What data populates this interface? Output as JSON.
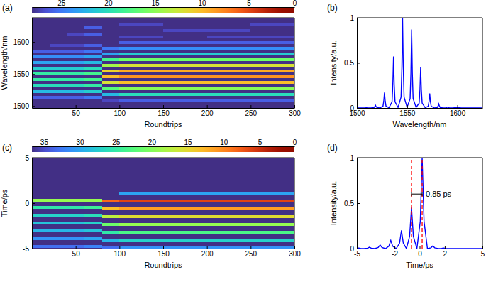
{
  "chart_data": [
    {
      "type": "heatmap",
      "title": "(a)",
      "x_label": "Roundtrips",
      "y_label": "Wavelength/nm",
      "xlim": [
        0,
        300
      ],
      "xticks": [
        50,
        100,
        150,
        200,
        250,
        300
      ],
      "ylim": [
        1497,
        1638
      ],
      "yticks": [
        1500,
        1550,
        1600
      ],
      "x_edges": [
        0,
        20,
        40,
        60,
        80,
        100,
        150,
        200,
        250,
        300
      ],
      "y": [
        1514,
        1523,
        1532,
        1541,
        1550,
        1559,
        1568,
        1577,
        1586,
        1595,
        1613,
        1622,
        1509.5,
        1518.5,
        1527.5,
        1536.5,
        1545.5,
        1554.5,
        1563.5,
        1572.5,
        1581.5,
        1590.5,
        1599.5,
        1608.5,
        1617.5,
        1626.5
      ],
      "z": [
        [
          -26,
          -26,
          -26,
          -25,
          null,
          null,
          null,
          null,
          null
        ],
        [
          -22,
          -22,
          -22,
          -21,
          null,
          null,
          null,
          null,
          null
        ],
        [
          -20,
          -20,
          -20,
          -19,
          null,
          null,
          null,
          null,
          null
        ],
        [
          -19,
          -19,
          -19,
          -18,
          null,
          null,
          null,
          null,
          null
        ],
        [
          -19,
          -19,
          -19,
          -18,
          null,
          null,
          null,
          null,
          null
        ],
        [
          -21,
          -21,
          -21,
          -20,
          null,
          null,
          null,
          null,
          null
        ],
        [
          -23,
          -23,
          -23,
          -22,
          null,
          null,
          null,
          null,
          null
        ],
        [
          -24,
          -24,
          -24,
          -23,
          null,
          null,
          null,
          null,
          null
        ],
        [
          -26,
          -26,
          -26,
          -25,
          null,
          null,
          null,
          null,
          null
        ],
        [
          null,
          -27,
          -27,
          -26,
          null,
          null,
          null,
          null,
          null
        ],
        [
          null,
          null,
          -27,
          -26,
          null,
          null,
          null,
          null,
          null
        ],
        [
          null,
          null,
          null,
          -26,
          null,
          null,
          null,
          null,
          null
        ],
        [
          null,
          null,
          null,
          null,
          -27,
          -26,
          -26,
          -26,
          -26
        ],
        [
          null,
          null,
          null,
          null,
          -22,
          -20,
          -20,
          -20,
          -20
        ],
        [
          null,
          null,
          null,
          null,
          -17,
          -15,
          -15,
          -15,
          -15
        ],
        [
          null,
          null,
          null,
          null,
          -12,
          -10,
          -10,
          -10,
          -10
        ],
        [
          null,
          null,
          null,
          null,
          -10,
          -8,
          -8,
          -8,
          -8
        ],
        [
          null,
          null,
          null,
          null,
          -11,
          -9,
          -9,
          -9,
          -9
        ],
        [
          null,
          null,
          null,
          null,
          -14,
          -12,
          -12,
          -12,
          -12
        ],
        [
          null,
          null,
          null,
          null,
          -18,
          -16,
          -16,
          -16,
          -16
        ],
        [
          null,
          null,
          null,
          null,
          -23,
          -21,
          -21,
          -21,
          -21
        ],
        [
          null,
          null,
          null,
          null,
          -25,
          -24,
          -24,
          -24,
          -24
        ],
        [
          null,
          null,
          null,
          null,
          null,
          -26,
          -26,
          -26,
          -26
        ],
        [
          null,
          null,
          null,
          null,
          null,
          -27,
          null,
          -27,
          -27
        ],
        [
          null,
          null,
          null,
          null,
          null,
          null,
          -27,
          -27,
          null
        ],
        [
          null,
          null,
          null,
          null,
          null,
          -27,
          null,
          null,
          -27
        ]
      ],
      "colorbar": {
        "range": [
          -28,
          0
        ],
        "ticks": [
          -25,
          -20,
          -15,
          -10,
          -5,
          0
        ]
      }
    },
    {
      "type": "line",
      "title": "(b)",
      "x_label": "Wavelength/nm",
      "y_label": "Intensity/a.u.",
      "xlim": [
        1500,
        1625
      ],
      "xticks": [
        1500,
        1550,
        1600
      ],
      "ylim": [
        0,
        1
      ],
      "yticks": [
        0,
        0.5,
        1
      ],
      "series": [
        {
          "color": "#0000ff",
          "x": [
            1500,
            1505,
            1508,
            1508.8,
            1509.5,
            1510.2,
            1511,
            1514,
            1517,
            1517.8,
            1518.5,
            1519.2,
            1520,
            1523,
            1526,
            1526.8,
            1527.5,
            1528.2,
            1529,
            1532,
            1535,
            1535.8,
            1536.5,
            1537.2,
            1538,
            1541,
            1544,
            1544.8,
            1545.5,
            1546.2,
            1547,
            1550,
            1553,
            1553.8,
            1554.5,
            1555.2,
            1556,
            1559,
            1562,
            1562.8,
            1563.5,
            1564.2,
            1565,
            1568,
            1571,
            1571.8,
            1572.5,
            1573.2,
            1574,
            1577,
            1580,
            1580.8,
            1581.5,
            1582.2,
            1583,
            1586,
            1589,
            1590.5,
            1592,
            1595,
            1599.5,
            1604,
            1625
          ],
          "values": [
            0,
            0,
            0.001,
            0.002,
            0.005,
            0.002,
            0.001,
            0,
            0.004,
            0.014,
            0.03,
            0.014,
            0.004,
            0.001,
            0.02,
            0.077,
            0.17,
            0.077,
            0.02,
            0.003,
            0.068,
            0.257,
            0.57,
            0.257,
            0.068,
            0.006,
            0.12,
            0.45,
            1,
            0.45,
            0.12,
            0.008,
            0.104,
            0.392,
            0.87,
            0.392,
            0.104,
            0.006,
            0.054,
            0.203,
            0.45,
            0.203,
            0.054,
            0.003,
            0.019,
            0.072,
            0.16,
            0.072,
            0.019,
            0.001,
            0.005,
            0.02,
            0.045,
            0.02,
            0.005,
            0,
            0.001,
            0.012,
            0.001,
            0,
            0.004,
            0,
            0
          ]
        }
      ]
    },
    {
      "type": "heatmap",
      "title": "(c)",
      "x_label": "Roundtrips",
      "y_label": "Time/ps",
      "xlim": [
        0,
        300
      ],
      "xticks": [
        50,
        100,
        150,
        200,
        250,
        300
      ],
      "ylim": [
        -5,
        5
      ],
      "yticks": [
        -5,
        0,
        5
      ],
      "x_edges": [
        0,
        20,
        40,
        60,
        80,
        100,
        150,
        200,
        250,
        300
      ],
      "y": [
        0.35,
        -0.5,
        -1.35,
        -2.2,
        -3.05,
        -3.9,
        -4.75,
        1.05,
        0.2,
        -0.65,
        -1.5,
        -2.35,
        -3.2,
        -4.05,
        -4.9
      ],
      "z": [
        [
          -19,
          -19,
          -19,
          -19,
          null,
          null,
          null,
          null,
          null
        ],
        [
          -25,
          -25,
          -25,
          -24,
          null,
          null,
          null,
          null,
          null
        ],
        [
          -27,
          -27,
          -27,
          -26,
          null,
          null,
          null,
          null,
          null
        ],
        [
          -28,
          -28,
          -28,
          -27,
          null,
          null,
          null,
          null,
          null
        ],
        [
          -29,
          -29,
          -29,
          -28,
          null,
          null,
          null,
          null,
          null
        ],
        [
          -31,
          -31,
          -31,
          -30,
          null,
          null,
          null,
          null,
          null
        ],
        [
          -33,
          -33,
          -33,
          -32,
          null,
          null,
          null,
          null,
          null
        ],
        [
          null,
          null,
          null,
          null,
          null,
          -30,
          -30,
          -30,
          -30
        ],
        [
          null,
          null,
          null,
          null,
          -8,
          -6,
          -6,
          -6,
          -6
        ],
        [
          null,
          null,
          null,
          null,
          -13,
          -11,
          -11,
          -11,
          -11
        ],
        [
          null,
          null,
          null,
          null,
          -17,
          -15,
          -15,
          -15,
          -15
        ],
        [
          null,
          null,
          null,
          null,
          -21,
          -19,
          -19,
          -19,
          -19
        ],
        [
          null,
          null,
          null,
          null,
          -25,
          -23,
          -23,
          -23,
          -23
        ],
        [
          null,
          null,
          null,
          null,
          -29,
          -27,
          -27,
          -27,
          -27
        ],
        [
          null,
          null,
          null,
          null,
          -33,
          -31,
          -31,
          -31,
          -31
        ]
      ],
      "colorbar": {
        "range": [
          -36.5,
          0
        ],
        "ticks": [
          -35,
          -30,
          -25,
          -20,
          -15,
          -10,
          -5,
          0
        ]
      }
    },
    {
      "type": "line",
      "title": "(d)",
      "x_label": "Time/ps",
      "y_label": "Intensity/a.u.",
      "xlim": [
        -5,
        5
      ],
      "xticks": [
        -5,
        -2,
        0,
        2,
        5
      ],
      "ylim": [
        0,
        1
      ],
      "yticks": [
        0,
        0.5,
        1
      ],
      "series": [
        {
          "color": "#0000ff",
          "x": [
            -5,
            -4.85,
            -4.7,
            -4.43,
            -4.15,
            -4,
            -3.85,
            -3.57,
            -3.3,
            -3.15,
            -3,
            -2.72,
            -2.45,
            -2.3,
            -2.15,
            -1.87,
            -1.6,
            -1.45,
            -1.3,
            -1.05,
            -0.8,
            -0.65,
            -0.5,
            -0.22,
            0.05,
            0.2,
            0.35,
            0.62,
            0.9,
            1.05,
            1.2,
            1.47,
            1.75,
            1.9,
            2.05,
            2.4,
            5
          ],
          "values": [
            0.001,
            0.006,
            0.002,
            0,
            0.0045,
            0.015,
            0.0045,
            0,
            0.012,
            0.04,
            0.012,
            0,
            0.027,
            0.09,
            0.027,
            0,
            0.06,
            0.2,
            0.06,
            0,
            0.135,
            0.45,
            0.135,
            0,
            0.3,
            1,
            0.3,
            0,
            0.009,
            0.03,
            0.009,
            0,
            0.002,
            0.006,
            0.002,
            0,
            0
          ]
        },
        {
          "type": "vline",
          "color": "#ff0000",
          "line_style": "dashed",
          "x": [
            -0.65,
            0.2
          ],
          "values": [
            1,
            1
          ]
        }
      ],
      "annotations": [
        {
          "text": "0.85 ps",
          "x1": -0.65,
          "x2": 0.2,
          "y": 0.6
        }
      ]
    }
  ]
}
